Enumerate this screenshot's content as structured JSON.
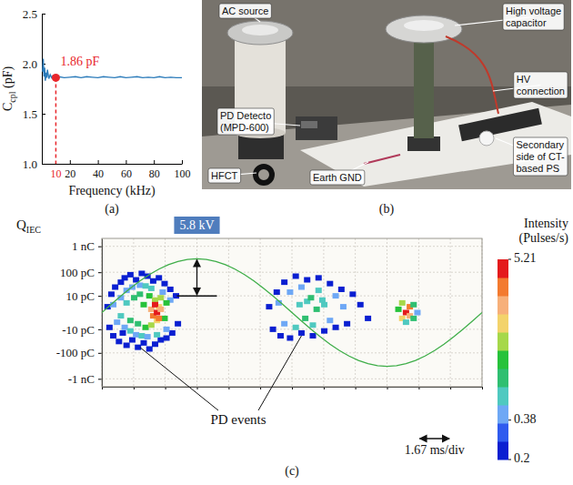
{
  "chart_data": [
    {
      "type": "line",
      "panel": "(a)",
      "xlabel": "Frequency (kHz)",
      "ylabel": {
        "text": "C",
        "subscript": "cpl",
        "suffix": " (pF)"
      },
      "x": [
        0.5,
        1,
        1.5,
        2,
        2.5,
        3,
        3.5,
        4,
        5,
        6,
        7,
        8,
        9,
        10,
        12,
        16,
        20,
        24,
        28,
        32,
        36,
        40,
        44,
        48,
        52,
        56,
        60,
        64,
        68,
        72,
        76,
        80,
        84,
        88,
        92,
        96,
        100
      ],
      "values": [
        1.92,
        2.05,
        1.87,
        1.96,
        1.83,
        1.91,
        1.86,
        1.94,
        1.85,
        1.89,
        1.86,
        1.88,
        1.87,
        1.86,
        1.87,
        1.86,
        1.865,
        1.87,
        1.86,
        1.87,
        1.865,
        1.86,
        1.87,
        1.865,
        1.86,
        1.87,
        1.86,
        1.865,
        1.87,
        1.86,
        1.865,
        1.86,
        1.87,
        1.86,
        1.865,
        1.86,
        1.86
      ],
      "color": "#2b7bba",
      "xlim": [
        0,
        100
      ],
      "ylim": [
        1,
        2.5
      ],
      "xticks": [
        20,
        40,
        60,
        80,
        100
      ],
      "yticks": [
        {
          "value": 1,
          "label": "1.0"
        },
        1.5,
        {
          "value": 2,
          "label": "2.0"
        },
        2.5
      ],
      "annotations": [
        {
          "text": "1.86 pF",
          "x": 10,
          "y": 1.86,
          "x_label": "10",
          "color": "#e8262b"
        }
      ]
    },
    {
      "type": "scatter",
      "panel": "(c)",
      "ylabel": {
        "text": "Q",
        "subscript": "IEC"
      },
      "log": "y",
      "grid": true,
      "tick_labels": "y",
      "xlim": [
        0,
        20
      ],
      "ylim": [
        -2000,
        2000
      ],
      "y2lim": [
        -8,
        8
      ],
      "xticks": [
        0,
        1.67,
        3.33,
        5,
        6.67,
        8.33,
        10,
        11.67,
        13.33,
        15,
        16.67,
        18.33,
        20
      ],
      "yticks": [
        {
          "value": 1000,
          "label": "1 nC"
        },
        {
          "value": 100,
          "label": "100 pC"
        },
        {
          "value": 10,
          "label": "10 pC"
        },
        {
          "value": -10,
          "label": "-10 pC"
        },
        {
          "value": -100,
          "label": "-100 pC"
        },
        {
          "value": -1000,
          "label": "-1 nC"
        }
      ],
      "series": [
        {
          "type": "scatter",
          "marker": "square",
          "x": [
            0.3,
            0.4,
            0.5,
            0.6,
            0.7,
            0.9,
            1.0,
            1.1,
            1.2,
            1.3,
            1.5,
            1.6,
            1.8,
            1.9,
            2.1,
            2.2,
            2.4,
            2.5,
            2.7,
            2.8,
            3.0,
            3.1,
            3.3,
            3.4,
            3.6,
            3.7,
            3.9,
            4.0,
            0.6,
            0.8,
            1.0,
            1.2,
            1.3,
            1.5,
            1.6,
            1.8,
            2.0,
            2.1,
            2.3,
            2.4,
            2.6,
            2.9,
            3.2,
            3.4,
            3.6,
            1.0,
            1.3,
            1.5,
            1.7,
            1.9,
            2.0,
            2.2,
            2.3,
            2.5,
            2.6,
            2.8,
            2.9,
            3.0,
            3.1,
            3.3,
            3.4,
            2.6,
            2.7,
            2.8,
            2.9,
            3.0,
            3.1,
            8.8,
            9.0,
            9.2,
            9.4,
            9.6,
            9.9,
            10.2,
            10.5,
            10.8,
            11.1,
            11.4,
            11.7,
            12.0,
            12.3,
            12.6,
            12.9,
            13.2,
            13.6,
            14.0,
            9.3,
            9.6,
            9.9,
            10.2,
            10.5,
            10.8,
            11.1,
            11.4,
            11.7,
            12.0,
            12.3,
            12.7,
            10.4,
            10.7,
            11.0,
            11.3,
            11.6,
            15.6,
            15.8,
            15.8,
            16.0,
            16.0,
            16.2,
            16.2,
            16.4,
            16.4,
            16.6
          ],
          "values": [
            2,
            -8,
            12,
            -20,
            25,
            -35,
            40,
            -15,
            60,
            -50,
            80,
            -30,
            50,
            -60,
            90,
            -40,
            70,
            -70,
            45,
            -45,
            60,
            -30,
            35,
            -25,
            20,
            -15,
            10,
            -5,
            3,
            -4,
            8,
            -8,
            18,
            -12,
            25,
            -18,
            30,
            -20,
            28,
            -22,
            22,
            -18,
            15,
            -10,
            6,
            -1,
            4,
            -3,
            8,
            -5,
            12,
            3,
            -8,
            10,
            -6,
            6,
            -3,
            2,
            8,
            -2,
            4,
            1,
            -1,
            3,
            0,
            -2,
            1,
            2,
            -10,
            15,
            -20,
            40,
            -25,
            70,
            -15,
            50,
            -20,
            60,
            -12,
            35,
            -8,
            20,
            -5,
            12,
            3,
            -2,
            4,
            -5,
            15,
            -8,
            25,
            5,
            -6,
            18,
            3,
            -3,
            10,
            2,
            3,
            -2,
            8,
            1,
            6,
            1,
            -2,
            4,
            0,
            -4,
            2,
            -1,
            3,
            -2,
            0
          ],
          "intensity": [
            0.2,
            0.2,
            0.22,
            0.2,
            0.21,
            0.2,
            0.2,
            0.23,
            0.2,
            0.2,
            0.2,
            0.22,
            0.21,
            0.2,
            0.2,
            0.21,
            0.2,
            0.2,
            0.22,
            0.2,
            0.2,
            0.21,
            0.2,
            0.22,
            0.21,
            0.2,
            0.2,
            0.2,
            0.42,
            0.45,
            0.48,
            0.45,
            0.45,
            0.5,
            0.45,
            0.48,
            0.45,
            0.5,
            0.5,
            0.45,
            0.52,
            0.5,
            0.48,
            0.45,
            0.45,
            0.6,
            0.65,
            0.7,
            0.75,
            0.8,
            0.7,
            1.0,
            0.9,
            1.1,
            1.2,
            1.4,
            1.7,
            2.0,
            1.5,
            1.1,
            0.9,
            2.5,
            3.2,
            4.0,
            5.0,
            3.5,
            2.8,
            0.2,
            0.2,
            0.21,
            0.2,
            0.2,
            0.21,
            0.2,
            0.2,
            0.22,
            0.2,
            0.2,
            0.21,
            0.2,
            0.2,
            0.21,
            0.2,
            0.2,
            0.2,
            0.2,
            0.42,
            0.45,
            0.48,
            0.5,
            0.45,
            0.55,
            0.52,
            0.5,
            0.55,
            0.48,
            0.45,
            0.42,
            0.6,
            0.7,
            0.75,
            0.7,
            0.6,
            1.0,
            2.0,
            1.5,
            4.5,
            0.6,
            3.0,
            2.5,
            0.8,
            0.7,
            0.4
          ]
        },
        {
          "type": "line",
          "axis": "y2",
          "color": "#3fae49",
          "line_style": "solid",
          "x": [
            0,
            0.5,
            1,
            1.5,
            2,
            2.5,
            3,
            3.5,
            4,
            4.5,
            5,
            5.5,
            6,
            6.5,
            7,
            7.5,
            8,
            8.5,
            9,
            9.5,
            10,
            10.5,
            11,
            11.5,
            12,
            12.5,
            13,
            13.5,
            14,
            14.5,
            15,
            15.5,
            16,
            16.5,
            17,
            17.5,
            18,
            18.5,
            19,
            19.5,
            20
          ],
          "values": [
            0,
            0.91,
            1.79,
            2.63,
            3.41,
            4.1,
            4.69,
            5.17,
            5.52,
            5.73,
            5.8,
            5.73,
            5.52,
            5.17,
            4.69,
            4.1,
            3.41,
            2.63,
            1.79,
            0.91,
            0,
            -0.91,
            -1.79,
            -2.63,
            -3.41,
            -4.1,
            -4.69,
            -5.17,
            -5.52,
            -5.73,
            -5.8,
            -5.73,
            -5.52,
            -5.17,
            -4.69,
            -4.1,
            -3.41,
            -2.63,
            -1.79,
            -0.91,
            0
          ]
        }
      ],
      "colorbar": {
        "title": [
          "Intensity",
          "(Pulses/s)"
        ],
        "range": [
          0.2,
          5.21
        ],
        "ticks": [
          0.2,
          0.38,
          5.21
        ],
        "colors": [
          "#0a1fd1",
          "#2f5bef",
          "#6ea8f5",
          "#4fc9c0",
          "#2fbf71",
          "#27c23a",
          "#a6d84a",
          "#f3d36b",
          "#f7b07a",
          "#f37a2f",
          "#e41a1c"
        ]
      },
      "annotations": [
        {
          "text": "5.8 kV",
          "x": 5,
          "y2": 5.8,
          "y": 10,
          "color": "#4f7dbd"
        },
        {
          "text": "PD events",
          "targets": [
            {
              "x": 2.0,
              "y": -60
            },
            {
              "x": 10.5,
              "y": -20
            }
          ]
        },
        {
          "text": "1.67 ms/div",
          "x": [
            16.67,
            18.33
          ]
        }
      ]
    }
  ],
  "photo": {
    "panel": "(b)",
    "labels": [
      {
        "lines": [
          "AC source"
        ]
      },
      {
        "lines": [
          "High voltage",
          "capacitor"
        ]
      },
      {
        "lines": [
          "HV",
          "connection"
        ]
      },
      {
        "lines": [
          "PD Detecto",
          "(MPD-600)"
        ]
      },
      {
        "lines": [
          "Secondary",
          "side of CT-",
          "based PS"
        ]
      },
      {
        "lines": [
          "HFCT"
        ]
      },
      {
        "lines": [
          "Earth GND"
        ]
      }
    ]
  }
}
